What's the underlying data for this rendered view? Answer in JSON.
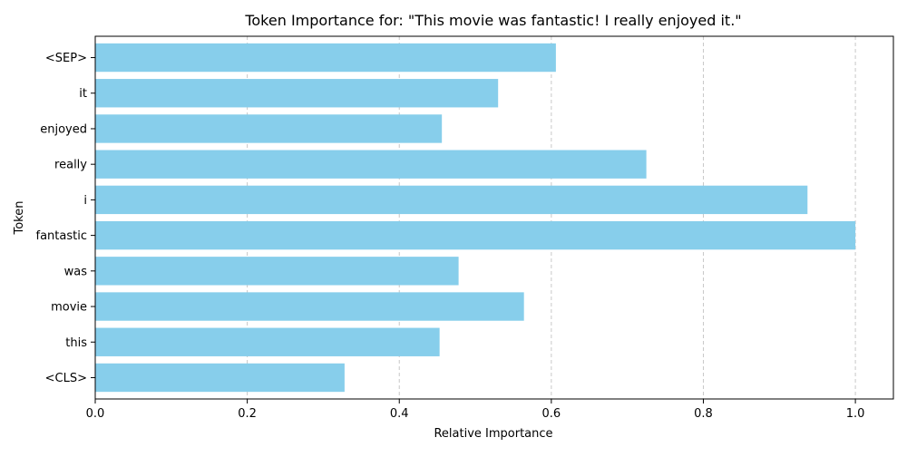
{
  "chart_data": {
    "type": "bar",
    "orientation": "horizontal",
    "title": "Token Importance for: \"This movie was fantastic! I really enjoyed it.\"",
    "xlabel": "Relative Importance",
    "ylabel": "Token",
    "categories": [
      "<CLS>",
      "this",
      "movie",
      "was",
      "fantastic",
      "i",
      "really",
      "enjoyed",
      "it",
      "<SEP>"
    ],
    "values": [
      0.328,
      0.453,
      0.564,
      0.478,
      1.0,
      0.937,
      0.725,
      0.456,
      0.53,
      0.606
    ],
    "xlim": [
      0.0,
      1.05
    ],
    "xticks": [
      0.0,
      0.2,
      0.4,
      0.6,
      0.8,
      1.0
    ],
    "xtick_labels": [
      "0.0",
      "0.2",
      "0.4",
      "0.6",
      "0.8",
      "1.0"
    ],
    "grid": "x-axis, dashed",
    "legend": "none",
    "bar_color": "#87ceeb",
    "grid_color": "#c8c8c8"
  }
}
